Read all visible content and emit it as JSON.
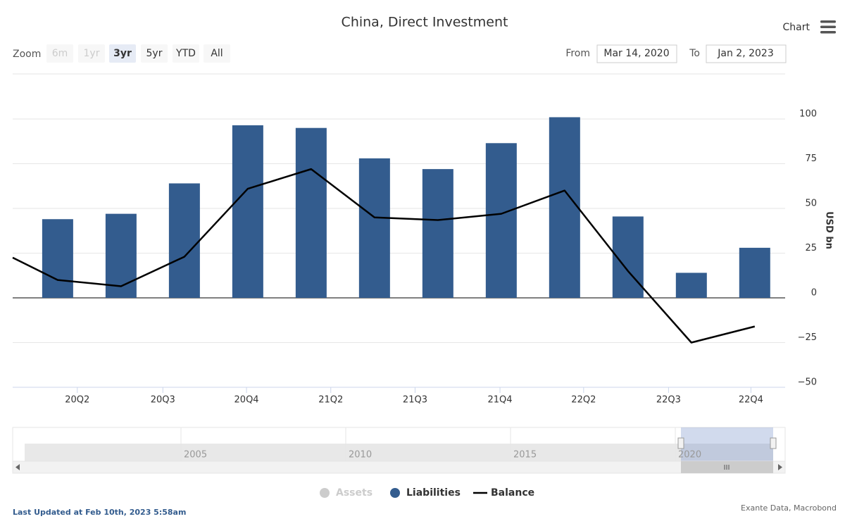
{
  "toolbar": {
    "zoom_label": "Zoom",
    "buttons": [
      "6m",
      "1yr",
      "3yr",
      "5yr",
      "YTD",
      "All"
    ],
    "selected_button": "3yr",
    "disabled_buttons": [
      "6m",
      "1yr"
    ],
    "from_label": "From",
    "from": "Mar 14, 2020",
    "to_label": "To",
    "to": "Jan 2, 2023",
    "menu_label": "Chart"
  },
  "chart_data": {
    "type": "bar",
    "title": "China, Direct Investment",
    "y_label": "USD bn",
    "xlim": [
      -0.71,
      11.48
    ],
    "xticks": [
      {
        "value": 0.31,
        "label": "20Q2"
      },
      {
        "value": 1.66,
        "label": "20Q3"
      },
      {
        "value": 2.98,
        "label": "20Q4"
      },
      {
        "value": 4.31,
        "label": "21Q2"
      },
      {
        "value": 5.64,
        "label": "21Q3"
      },
      {
        "value": 6.98,
        "label": "21Q4"
      },
      {
        "value": 8.3,
        "label": "22Q2"
      },
      {
        "value": 9.64,
        "label": "22Q3"
      },
      {
        "value": 10.94,
        "label": "22Q4"
      }
    ],
    "ylim": [
      -50,
      125
    ],
    "yticks": [
      {
        "value": -50,
        "label": "−50"
      },
      {
        "value": -25,
        "label": "−25"
      },
      0,
      25,
      50,
      75,
      100
    ],
    "grid": true,
    "series": [
      {
        "name": "Assets",
        "type": "bar",
        "color": "#cccccc",
        "visible": false
      },
      {
        "name": "Liabilities",
        "type": "bar",
        "color": "#335c8e",
        "x": [
          0,
          1,
          2,
          3,
          4,
          5,
          6,
          7,
          8,
          9,
          10,
          11
        ],
        "values": [
          44,
          47,
          64,
          96.5,
          95,
          78,
          72,
          86.5,
          101,
          45.5,
          14,
          28
        ]
      },
      {
        "name": "Balance",
        "type": "line",
        "color": "#000000",
        "x": [
          -0.71,
          0,
          1,
          2,
          3,
          4,
          5,
          6,
          7,
          8,
          9,
          10,
          11
        ],
        "values": [
          22.5,
          10,
          6.5,
          23,
          61,
          72,
          45,
          43.5,
          47,
          60,
          15,
          -25,
          -16
        ]
      }
    ]
  },
  "navigator": {
    "labels": [
      "2005",
      "2010",
      "2015",
      "2020"
    ]
  },
  "footer": {
    "updated": "Last Updated at Feb 10th, 2023 5:58am",
    "source": "Exante Data, Macrobond"
  }
}
